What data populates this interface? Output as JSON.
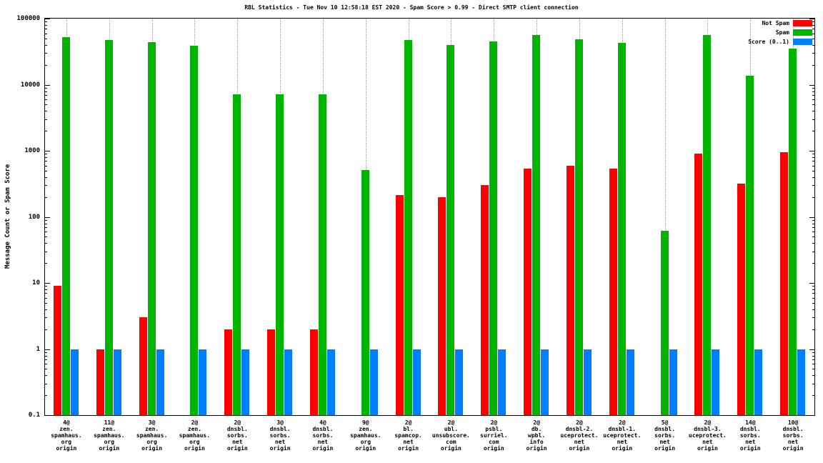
{
  "title": "RBL Statistics - Tue Nov 10 12:58:18 EST 2020 - Spam Score > 0.99 - Direct SMTP client connection",
  "y_axis_label": "Message Count or Spam Score",
  "legend": [
    {
      "label": "Not Spam",
      "color": "#ff0000"
    },
    {
      "label": "Spam",
      "color": "#00b400"
    },
    {
      "label": "Score (0..1)",
      "color": "#0080ff"
    }
  ],
  "chart_data": {
    "type": "bar",
    "y_scale": "log",
    "ylim": [
      0.1,
      100000
    ],
    "y_ticks": [
      "0.1",
      "1",
      "10",
      "100",
      "1000",
      "10000",
      "100000"
    ],
    "grid": "vertical-dotted",
    "legend_position": "top-right",
    "title": "RBL Statistics - Tue Nov 10 12:58:18 EST 2020 - Spam Score > 0.99 - Direct SMTP client connection",
    "xlabel": "",
    "ylabel": "Message Count or Spam Score",
    "categories": [
      [
        "4@",
        "zen.",
        "spamhaus.",
        "org",
        "origin"
      ],
      [
        "11@",
        "zen.",
        "spamhaus.",
        "org",
        "origin"
      ],
      [
        "3@",
        "zen.",
        "spamhaus.",
        "org",
        "origin"
      ],
      [
        "2@",
        "zen.",
        "spamhaus.",
        "org",
        "origin"
      ],
      [
        "2@",
        "dnsbl.",
        "sorbs.",
        "net",
        "origin"
      ],
      [
        "3@",
        "dnsbl.",
        "sorbs.",
        "net",
        "origin"
      ],
      [
        "4@",
        "dnsbl.",
        "sorbs.",
        "net",
        "origin"
      ],
      [
        "9@",
        "zen.",
        "spamhaus.",
        "org",
        "origin"
      ],
      [
        "2@",
        "bl.",
        "spamcop.",
        "net",
        "origin"
      ],
      [
        "2@",
        "ubl.",
        "unsubscore.",
        "com",
        "origin"
      ],
      [
        "2@",
        "psbl.",
        "surriel.",
        "com",
        "origin"
      ],
      [
        "2@",
        "db.",
        "wpbl.",
        "info",
        "origin"
      ],
      [
        "2@",
        "dnsbl-2.",
        "uceprotect.",
        "net",
        "origin"
      ],
      [
        "2@",
        "dnsbl-1.",
        "uceprotect.",
        "net",
        "origin"
      ],
      [
        "5@",
        "dnsbl.",
        "sorbs.",
        "net",
        "origin"
      ],
      [
        "2@",
        "dnsbl-3.",
        "uceprotect.",
        "net",
        "origin"
      ],
      [
        "14@",
        "dnsbl.",
        "sorbs.",
        "net",
        "origin"
      ],
      [
        "10@",
        "dnsbl.",
        "sorbs.",
        "net",
        "origin"
      ]
    ],
    "series": [
      {
        "name": "Not Spam",
        "color": "#ff0000",
        "values": [
          9,
          1,
          3,
          0,
          2,
          2,
          2,
          0,
          215,
          200,
          300,
          540,
          600,
          540,
          0,
          900,
          320,
          950
        ]
      },
      {
        "name": "Spam",
        "color": "#00b400",
        "values": [
          52000,
          47000,
          44000,
          39000,
          7200,
          7200,
          7200,
          510,
          47000,
          40000,
          45000,
          57000,
          49000,
          43000,
          62,
          56000,
          13500,
          35000
        ]
      },
      {
        "name": "Score (0..1)",
        "color": "#0080ff",
        "values": [
          1,
          1,
          1,
          1,
          1,
          1,
          1,
          1,
          1,
          1,
          1,
          1,
          1,
          1,
          1,
          1,
          1,
          1
        ]
      }
    ]
  }
}
